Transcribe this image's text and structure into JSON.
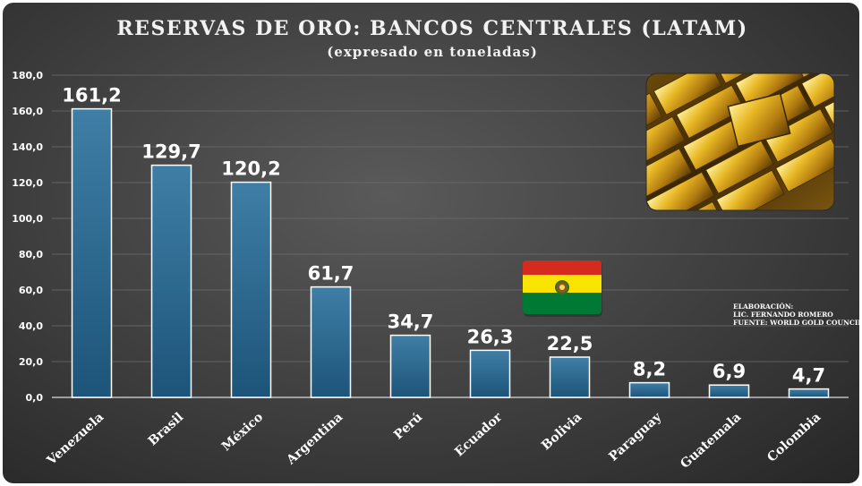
{
  "chart_data": {
    "type": "bar",
    "title": "RESERVAS DE ORO: BANCOS CENTRALES (LATAM)",
    "subtitle": "(expresado en toneladas)",
    "categories": [
      "Venezuela",
      "Brasil",
      "México",
      "Argentina",
      "Perú",
      "Ecuador",
      "Bolivia",
      "Paraguay",
      "Guatemala",
      "Colombia"
    ],
    "values": [
      161.2,
      129.7,
      120.2,
      61.7,
      34.7,
      26.3,
      22.5,
      8.2,
      6.9,
      4.7
    ],
    "value_labels": [
      "161,2",
      "129,7",
      "120,2",
      "61,7",
      "34,7",
      "26,3",
      "22,5",
      "8,2",
      "6,9",
      "4,7"
    ],
    "y_ticks": [
      "0,0",
      "20,0",
      "40,0",
      "60,0",
      "80,0",
      "100,0",
      "120,0",
      "140,0",
      "160,0",
      "180,0"
    ],
    "ylim": [
      0,
      180
    ],
    "grid": true,
    "bar_color": "#2a6a93",
    "highlighted_category": "Bolivia"
  },
  "credits": {
    "line1": "ELABORACIÓN:",
    "line2": "LIC. FERNANDO ROMERO",
    "line3": "FUENTE: WORLD GOLD COUNCIL"
  },
  "colors": {
    "background": "#3e3e3e",
    "bar_fill": "#2a6a93",
    "bar_outline": "#ffffff",
    "text": "#ffffff",
    "flag_red": "#d52b1e",
    "flag_yellow": "#f9e300",
    "flag_green": "#007934",
    "gold": "#d4a017"
  },
  "icons": {
    "gold_image": "gold-bars-photo",
    "flag": "bolivia-flag-icon"
  }
}
